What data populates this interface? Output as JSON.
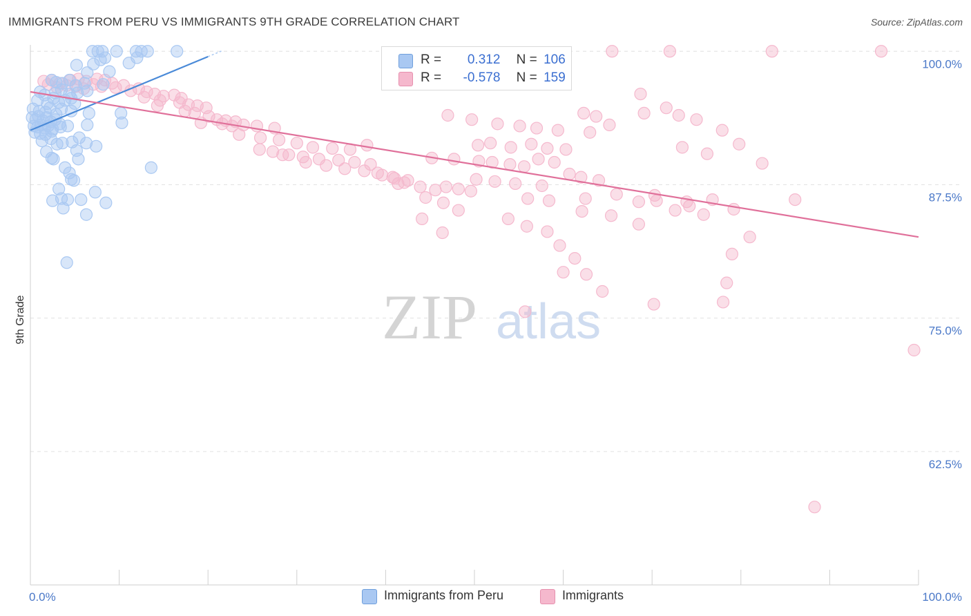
{
  "header": {
    "title": "IMMIGRANTS FROM PERU VS IMMIGRANTS 9TH GRADE CORRELATION CHART",
    "source": "Source: ZipAtlas.com"
  },
  "watermark": {
    "zip": "ZIP",
    "atlas": "atlas"
  },
  "legend": {
    "rows": [
      {
        "r_label": "R =",
        "r_value": "0.312",
        "n_label": "N =",
        "n_value": "106",
        "color": "#a9c8f2"
      },
      {
        "r_label": "R =",
        "r_value": "-0.578",
        "n_label": "N =",
        "n_value": "159",
        "color": "#f5b8cd"
      }
    ]
  },
  "bottom_legend": {
    "items": [
      {
        "label": "Immigrants from Peru",
        "color": "#a9c8f2"
      },
      {
        "label": "Immigrants",
        "color": "#f5b8cd"
      }
    ]
  },
  "chart_data": {
    "type": "scatter",
    "title": "IMMIGRANTS FROM PERU VS IMMIGRANTS 9TH GRADE CORRELATION CHART",
    "xlabel": "",
    "ylabel": "9th Grade",
    "xlim": [
      0,
      100
    ],
    "ylim": [
      50,
      100.6
    ],
    "x_tick_labels": [
      "0.0%",
      "100.0%"
    ],
    "y_ticks": [
      100,
      87.5,
      75,
      62.5
    ],
    "y_tick_labels": [
      "100.0%",
      "87.5%",
      "75.0%",
      "62.5%"
    ],
    "grid": true,
    "legend_position": "top-center",
    "series": [
      {
        "name": "Immigrants from Peru",
        "color": "#4a8ad8",
        "fill": "#a9c8f2",
        "trend": {
          "x": [
            0,
            20
          ],
          "y": [
            92.6,
            99.5
          ]
        },
        "points": [
          [
            7.0,
            100
          ],
          [
            7.6,
            100
          ],
          [
            8.1,
            100
          ],
          [
            9.7,
            100
          ],
          [
            11.9,
            100
          ],
          [
            12.5,
            100
          ],
          [
            13.2,
            100
          ],
          [
            16.5,
            100
          ],
          [
            7.1,
            98.8
          ],
          [
            7.9,
            99.2
          ],
          [
            8.4,
            99.4
          ],
          [
            11.1,
            98.9
          ],
          [
            12.0,
            99.4
          ],
          [
            5.2,
            98.7
          ],
          [
            6.4,
            98.0
          ],
          [
            8.9,
            98.1
          ],
          [
            2.4,
            97.3
          ],
          [
            2.9,
            97.1
          ],
          [
            3.6,
            97.0
          ],
          [
            4.4,
            97.3
          ],
          [
            5.1,
            96.8
          ],
          [
            6.1,
            97.0
          ],
          [
            8.2,
            96.9
          ],
          [
            1.1,
            96.2
          ],
          [
            1.6,
            95.9
          ],
          [
            2.8,
            96.1
          ],
          [
            3.5,
            96.4
          ],
          [
            4.4,
            96.0
          ],
          [
            5.3,
            96.1
          ],
          [
            6.4,
            96.3
          ],
          [
            0.8,
            95.4
          ],
          [
            1.9,
            95.1
          ],
          [
            2.6,
            95.6
          ],
          [
            3.2,
            95.2
          ],
          [
            3.9,
            95.4
          ],
          [
            4.6,
            95.6
          ],
          [
            5.0,
            95.1
          ],
          [
            0.3,
            94.6
          ],
          [
            1.0,
            94.4
          ],
          [
            1.7,
            94.3
          ],
          [
            2.2,
            94.7
          ],
          [
            2.9,
            94.1
          ],
          [
            3.5,
            94.6
          ],
          [
            4.6,
            94.4
          ],
          [
            6.6,
            94.2
          ],
          [
            10.2,
            94.2
          ],
          [
            0.2,
            93.8
          ],
          [
            0.6,
            93.6
          ],
          [
            0.9,
            93.9
          ],
          [
            1.4,
            93.5
          ],
          [
            1.8,
            93.8
          ],
          [
            2.3,
            93.4
          ],
          [
            2.8,
            93.6
          ],
          [
            3.3,
            93.2
          ],
          [
            0.4,
            93.0
          ],
          [
            0.8,
            92.9
          ],
          [
            1.2,
            93.1
          ],
          [
            1.6,
            92.8
          ],
          [
            2.0,
            93.0
          ],
          [
            2.5,
            92.7
          ],
          [
            3.4,
            92.9
          ],
          [
            4.2,
            93.0
          ],
          [
            6.4,
            93.1
          ],
          [
            10.3,
            93.3
          ],
          [
            0.5,
            92.4
          ],
          [
            1.1,
            92.3
          ],
          [
            1.7,
            92.2
          ],
          [
            2.4,
            92.5
          ],
          [
            1.3,
            91.6
          ],
          [
            2.3,
            91.8
          ],
          [
            3.0,
            91.3
          ],
          [
            3.6,
            91.4
          ],
          [
            4.7,
            91.5
          ],
          [
            5.5,
            91.9
          ],
          [
            6.3,
            91.4
          ],
          [
            7.4,
            91.1
          ],
          [
            1.8,
            90.6
          ],
          [
            2.4,
            90.0
          ],
          [
            2.6,
            89.9
          ],
          [
            5.2,
            90.7
          ],
          [
            5.4,
            89.9
          ],
          [
            3.9,
            89.1
          ],
          [
            4.4,
            88.6
          ],
          [
            4.6,
            88.0
          ],
          [
            4.9,
            87.9
          ],
          [
            13.6,
            89.1
          ],
          [
            3.2,
            87.1
          ],
          [
            7.3,
            86.8
          ],
          [
            2.5,
            86.0
          ],
          [
            3.5,
            86.2
          ],
          [
            4.2,
            86.1
          ],
          [
            5.7,
            86.1
          ],
          [
            8.5,
            85.8
          ],
          [
            3.7,
            85.3
          ],
          [
            6.3,
            84.7
          ],
          [
            4.1,
            80.2
          ]
        ]
      },
      {
        "name": "Immigrants",
        "color": "#e0709a",
        "fill": "#f5b8cd",
        "trend": {
          "x": [
            0,
            100
          ],
          "y": [
            96.2,
            82.6
          ]
        },
        "points": [
          [
            65.5,
            100
          ],
          [
            72.0,
            100
          ],
          [
            83.5,
            100
          ],
          [
            95.8,
            100
          ],
          [
            1.5,
            97.2
          ],
          [
            2.4,
            97.3
          ],
          [
            3.3,
            97.0
          ],
          [
            4.5,
            97.3
          ],
          [
            5.4,
            97.4
          ],
          [
            6.3,
            97.2
          ],
          [
            7.5,
            97.4
          ],
          [
            8.4,
            97.3
          ],
          [
            9.2,
            97.0
          ],
          [
            2.0,
            96.9
          ],
          [
            3.0,
            96.6
          ],
          [
            4.1,
            96.8
          ],
          [
            5.1,
            96.7
          ],
          [
            6.0,
            96.5
          ],
          [
            7.1,
            96.9
          ],
          [
            8.0,
            96.7
          ],
          [
            9.6,
            96.6
          ],
          [
            10.5,
            96.8
          ],
          [
            11.3,
            96.3
          ],
          [
            12.2,
            96.5
          ],
          [
            13.1,
            96.2
          ],
          [
            14.0,
            96.0
          ],
          [
            15.0,
            95.8
          ],
          [
            16.2,
            95.9
          ],
          [
            17.0,
            95.6
          ],
          [
            12.8,
            95.7
          ],
          [
            14.6,
            95.4
          ],
          [
            16.8,
            95.2
          ],
          [
            17.8,
            95.0
          ],
          [
            18.8,
            94.9
          ],
          [
            19.8,
            94.7
          ],
          [
            14.3,
            94.9
          ],
          [
            17.4,
            94.4
          ],
          [
            18.5,
            94.2
          ],
          [
            20.1,
            93.9
          ],
          [
            21.0,
            93.6
          ],
          [
            22.0,
            93.5
          ],
          [
            23.1,
            93.4
          ],
          [
            19.2,
            93.3
          ],
          [
            21.6,
            93.2
          ],
          [
            22.7,
            93.0
          ],
          [
            24.0,
            93.1
          ],
          [
            25.5,
            93.0
          ],
          [
            27.5,
            92.8
          ],
          [
            23.5,
            92.2
          ],
          [
            25.9,
            91.9
          ],
          [
            28.0,
            91.7
          ],
          [
            30.0,
            91.4
          ],
          [
            31.8,
            91.0
          ],
          [
            34.0,
            90.9
          ],
          [
            36.0,
            90.8
          ],
          [
            37.9,
            91.2
          ],
          [
            25.8,
            90.8
          ],
          [
            27.3,
            90.6
          ],
          [
            29.1,
            90.3
          ],
          [
            30.7,
            90.1
          ],
          [
            32.5,
            89.9
          ],
          [
            34.7,
            89.8
          ],
          [
            36.5,
            89.6
          ],
          [
            38.3,
            89.4
          ],
          [
            28.4,
            90.3
          ],
          [
            31.0,
            89.6
          ],
          [
            33.3,
            89.3
          ],
          [
            35.4,
            89.0
          ],
          [
            37.6,
            88.8
          ],
          [
            39.1,
            88.6
          ],
          [
            40.8,
            88.2
          ],
          [
            42.5,
            87.9
          ],
          [
            39.6,
            88.4
          ],
          [
            41.4,
            87.6
          ],
          [
            43.9,
            87.3
          ],
          [
            45.6,
            87.0
          ],
          [
            46.8,
            87.3
          ],
          [
            48.2,
            87.1
          ],
          [
            49.6,
            86.9
          ],
          [
            45.2,
            90.0
          ],
          [
            47.7,
            89.9
          ],
          [
            50.5,
            89.7
          ],
          [
            52.0,
            89.6
          ],
          [
            54.0,
            89.4
          ],
          [
            55.6,
            89.2
          ],
          [
            57.2,
            89.9
          ],
          [
            59.0,
            89.6
          ],
          [
            50.2,
            88.0
          ],
          [
            52.3,
            87.8
          ],
          [
            54.6,
            87.6
          ],
          [
            57.6,
            87.4
          ],
          [
            60.7,
            88.5
          ],
          [
            62.0,
            88.2
          ],
          [
            64.0,
            87.9
          ],
          [
            47.0,
            94.0
          ],
          [
            49.7,
            93.6
          ],
          [
            52.6,
            93.2
          ],
          [
            55.1,
            93.0
          ],
          [
            57.0,
            92.8
          ],
          [
            59.4,
            92.6
          ],
          [
            62.3,
            94.2
          ],
          [
            63.7,
            93.9
          ],
          [
            50.4,
            91.2
          ],
          [
            51.8,
            91.4
          ],
          [
            54.1,
            91.0
          ],
          [
            56.4,
            91.3
          ],
          [
            58.2,
            90.9
          ],
          [
            60.3,
            90.8
          ],
          [
            63.0,
            92.4
          ],
          [
            65.2,
            93.1
          ],
          [
            68.7,
            96.0
          ],
          [
            69.1,
            94.2
          ],
          [
            71.6,
            94.7
          ],
          [
            73.0,
            94.0
          ],
          [
            75.0,
            93.6
          ],
          [
            77.9,
            92.6
          ],
          [
            79.8,
            91.3
          ],
          [
            82.4,
            89.5
          ],
          [
            41.0,
            88.1
          ],
          [
            42.1,
            87.7
          ],
          [
            44.5,
            86.3
          ],
          [
            46.5,
            85.8
          ],
          [
            48.2,
            85.1
          ],
          [
            56.0,
            86.2
          ],
          [
            58.4,
            86.0
          ],
          [
            62.1,
            85.0
          ],
          [
            53.8,
            84.3
          ],
          [
            55.9,
            83.6
          ],
          [
            58.2,
            83.1
          ],
          [
            59.6,
            81.8
          ],
          [
            61.3,
            80.6
          ],
          [
            62.6,
            79.1
          ],
          [
            64.4,
            77.5
          ],
          [
            70.2,
            76.3
          ],
          [
            44.1,
            84.3
          ],
          [
            46.4,
            83.0
          ],
          [
            66.0,
            86.6
          ],
          [
            68.5,
            85.9
          ],
          [
            70.5,
            86.0
          ],
          [
            72.6,
            85.1
          ],
          [
            73.9,
            85.9
          ],
          [
            75.8,
            84.7
          ],
          [
            70.3,
            86.5
          ],
          [
            74.2,
            85.5
          ],
          [
            76.8,
            86.1
          ],
          [
            79.2,
            85.2
          ],
          [
            81.0,
            82.6
          ],
          [
            79.0,
            81.0
          ],
          [
            78.4,
            78.3
          ],
          [
            78.0,
            76.5
          ],
          [
            62.5,
            86.2
          ],
          [
            65.4,
            84.6
          ],
          [
            55.7,
            75.6
          ],
          [
            60.0,
            79.3
          ],
          [
            68.5,
            83.8
          ],
          [
            73.4,
            91.0
          ],
          [
            76.2,
            90.4
          ],
          [
            86.1,
            86.1
          ],
          [
            99.5,
            72.0
          ],
          [
            88.3,
            57.3
          ]
        ]
      }
    ]
  }
}
